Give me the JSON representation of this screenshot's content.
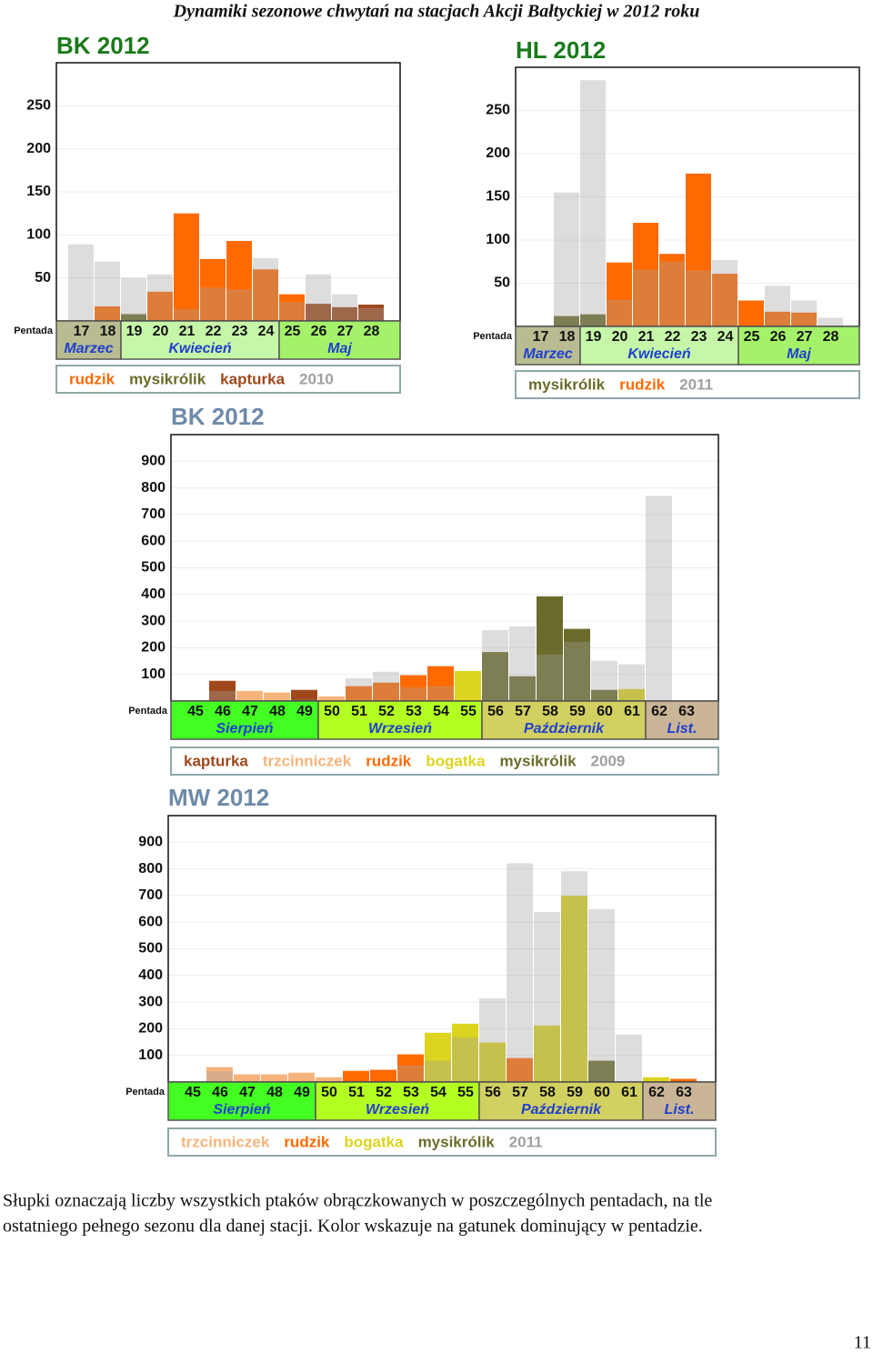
{
  "title": "Dynamiki sezonowe chwytań na stacjach Akcji Bałtyckiej w 2012 roku",
  "chart_data": [
    {
      "type": "bar",
      "title": "BK  2012",
      "title_color": "#1a7a1a",
      "x_label": "Pentada",
      "months": [
        {
          "name": "Marzec",
          "color": "#b8bc90",
          "categories": [
            "17",
            "18"
          ]
        },
        {
          "name": "Kwiecień",
          "color": "#c6f7a8",
          "categories": [
            "19",
            "20",
            "21",
            "22",
            "23",
            "24"
          ]
        },
        {
          "name": "Maj",
          "color": "#a4f26a",
          "categories": [
            "25",
            "26",
            "27",
            "28"
          ]
        }
      ],
      "series": [
        {
          "name": "rudzik",
          "color": "#ff6a00",
          "values": [
            null,
            17,
            null,
            34,
            125,
            72,
            93,
            60,
            31,
            null,
            null,
            null
          ]
        },
        {
          "name": "mysikrólik",
          "color": "#6b6b2b",
          "values": [
            null,
            null,
            8,
            null,
            null,
            null,
            null,
            null,
            null,
            null,
            null,
            null
          ]
        },
        {
          "name": "kapturka",
          "color": "#a0481c",
          "values": [
            null,
            null,
            null,
            null,
            null,
            null,
            null,
            null,
            null,
            20,
            16,
            19
          ]
        },
        {
          "name": "2010",
          "color": "#a0a0a0",
          "values": [
            89,
            69,
            50,
            54,
            14,
            39,
            37,
            73,
            22,
            54,
            31,
            15
          ]
        }
      ],
      "ylim": [
        0,
        300
      ],
      "yticks": [
        50,
        100,
        150,
        200,
        250
      ],
      "grid": true
    },
    {
      "type": "bar",
      "title": "HL  2012",
      "title_color": "#1a7a1a",
      "x_label": "Pentada",
      "months": [
        {
          "name": "Marzec",
          "color": "#b8bc90",
          "categories": [
            "17",
            "18"
          ]
        },
        {
          "name": "Kwiecień",
          "color": "#c6f7a8",
          "categories": [
            "19",
            "20",
            "21",
            "22",
            "23",
            "24"
          ]
        },
        {
          "name": "Maj",
          "color": "#a4f26a",
          "categories": [
            "25",
            "26",
            "27",
            "28"
          ]
        }
      ],
      "series": [
        {
          "name": "mysikrólik",
          "color": "#6b6b2b",
          "values": [
            null,
            12,
            14,
            null,
            null,
            null,
            null,
            null,
            null,
            null,
            null,
            null
          ]
        },
        {
          "name": "rudzik",
          "color": "#ff6a00",
          "values": [
            null,
            null,
            null,
            74,
            120,
            84,
            177,
            61,
            30,
            17,
            16,
            null
          ]
        },
        {
          "name": "2011",
          "color": "#a0a0a0",
          "values": [
            null,
            155,
            285,
            31,
            66,
            75,
            65,
            77,
            null,
            47,
            30,
            10
          ]
        }
      ],
      "ylim": [
        0,
        300
      ],
      "yticks": [
        50,
        100,
        150,
        200,
        250
      ],
      "grid": true
    },
    {
      "type": "bar",
      "title": "BK  2012",
      "title_color": "#6e8aa8",
      "x_label": "Pentada",
      "months": [
        {
          "name": "Sierpień",
          "color": "#44ff22",
          "categories": [
            "45",
            "46",
            "47",
            "48",
            "49"
          ]
        },
        {
          "name": "Wrzesień",
          "color": "#b4ff22",
          "categories": [
            "50",
            "51",
            "52",
            "53",
            "54",
            "55"
          ]
        },
        {
          "name": "Październik",
          "color": "#d2d060",
          "categories": [
            "56",
            "57",
            "58",
            "59",
            "60",
            "61"
          ]
        },
        {
          "name": "List.",
          "color": "#cab596",
          "categories": [
            "62",
            "63"
          ]
        }
      ],
      "series": [
        {
          "name": "kapturka",
          "color": "#a0481c",
          "values": [
            null,
            76,
            null,
            null,
            42,
            null,
            null,
            null,
            null,
            null,
            null,
            null,
            null,
            null,
            null,
            null,
            null,
            null,
            null
          ]
        },
        {
          "name": "trzcinniczek",
          "color": "#f6b47c",
          "values": [
            null,
            null,
            38,
            32,
            null,
            18,
            null,
            null,
            null,
            null,
            null,
            null,
            null,
            null,
            null,
            null,
            null,
            null,
            null
          ]
        },
        {
          "name": "rudzik",
          "color": "#ff6a00",
          "values": [
            null,
            null,
            null,
            null,
            null,
            null,
            56,
            69,
            97,
            131,
            null,
            null,
            null,
            null,
            null,
            null,
            null,
            null,
            null
          ]
        },
        {
          "name": "bogatka",
          "color": "#dcd41e",
          "values": [
            null,
            null,
            null,
            null,
            null,
            null,
            null,
            null,
            null,
            null,
            113,
            null,
            null,
            null,
            null,
            null,
            45,
            null,
            null
          ]
        },
        {
          "name": "mysikrólik",
          "color": "#6b6b2b",
          "values": [
            null,
            null,
            null,
            null,
            null,
            null,
            null,
            null,
            null,
            null,
            null,
            184,
            93,
            393,
            271,
            42,
            null,
            null,
            null
          ]
        },
        {
          "name": "2009",
          "color": "#a0a0a0",
          "values": [
            null,
            38,
            null,
            null,
            5,
            null,
            86,
            110,
            52,
            56,
            null,
            266,
            280,
            175,
            222,
            151,
            138,
            770,
            null
          ]
        }
      ],
      "ylim": [
        0,
        1000
      ],
      "yticks": [
        100,
        200,
        300,
        400,
        500,
        600,
        700,
        800,
        900
      ],
      "grid": true
    },
    {
      "type": "bar",
      "title": "MW  2012",
      "title_color": "#6e8aa8",
      "x_label": "Pentada",
      "months": [
        {
          "name": "Sierpień",
          "color": "#44ff22",
          "categories": [
            "45",
            "46",
            "47",
            "48",
            "49"
          ]
        },
        {
          "name": "Wrzesień",
          "color": "#b4ff22",
          "categories": [
            "50",
            "51",
            "52",
            "53",
            "54",
            "55"
          ]
        },
        {
          "name": "Październik",
          "color": "#d2d060",
          "categories": [
            "56",
            "57",
            "58",
            "59",
            "60",
            "61"
          ]
        },
        {
          "name": "List.",
          "color": "#cab596",
          "categories": [
            "62",
            "63"
          ]
        }
      ],
      "series": [
        {
          "name": "trzcinniczek",
          "color": "#f6b47c",
          "values": [
            null,
            56,
            29,
            29,
            35,
            18,
            null,
            null,
            null,
            null,
            null,
            null,
            null,
            null,
            null,
            null,
            null,
            null,
            null
          ]
        },
        {
          "name": "rudzik",
          "color": "#ff6a00",
          "values": [
            null,
            null,
            null,
            null,
            null,
            null,
            42,
            46,
            104,
            null,
            null,
            null,
            90,
            null,
            null,
            null,
            null,
            null,
            12
          ]
        },
        {
          "name": "bogatka",
          "color": "#dcd41e",
          "values": [
            null,
            null,
            null,
            null,
            null,
            null,
            null,
            null,
            null,
            185,
            219,
            148,
            null,
            212,
            699,
            null,
            null,
            18,
            null
          ]
        },
        {
          "name": "mysikrólik",
          "color": "#6b6b2b",
          "values": [
            null,
            null,
            null,
            null,
            null,
            null,
            null,
            null,
            null,
            null,
            null,
            null,
            null,
            null,
            null,
            80,
            null,
            null,
            null
          ]
        },
        {
          "name": "2011",
          "color": "#a0a0a0",
          "values": [
            null,
            40,
            null,
            null,
            null,
            null,
            null,
            null,
            63,
            80,
            168,
            314,
            821,
            638,
            791,
            649,
            178,
            null,
            null
          ]
        }
      ],
      "ylim": [
        0,
        1000
      ],
      "yticks": [
        100,
        200,
        300,
        400,
        500,
        600,
        700,
        800,
        900
      ],
      "grid": true
    }
  ],
  "caption": [
    "Słupki oznaczają liczby wszystkich ptaków obrączkowanych w poszczególnych pentadach, na tle",
    "ostatniego pełnego sezonu dla danej stacji. Kolor wskazuje na gatunek dominujący w pentadzie."
  ],
  "page_number": 11
}
